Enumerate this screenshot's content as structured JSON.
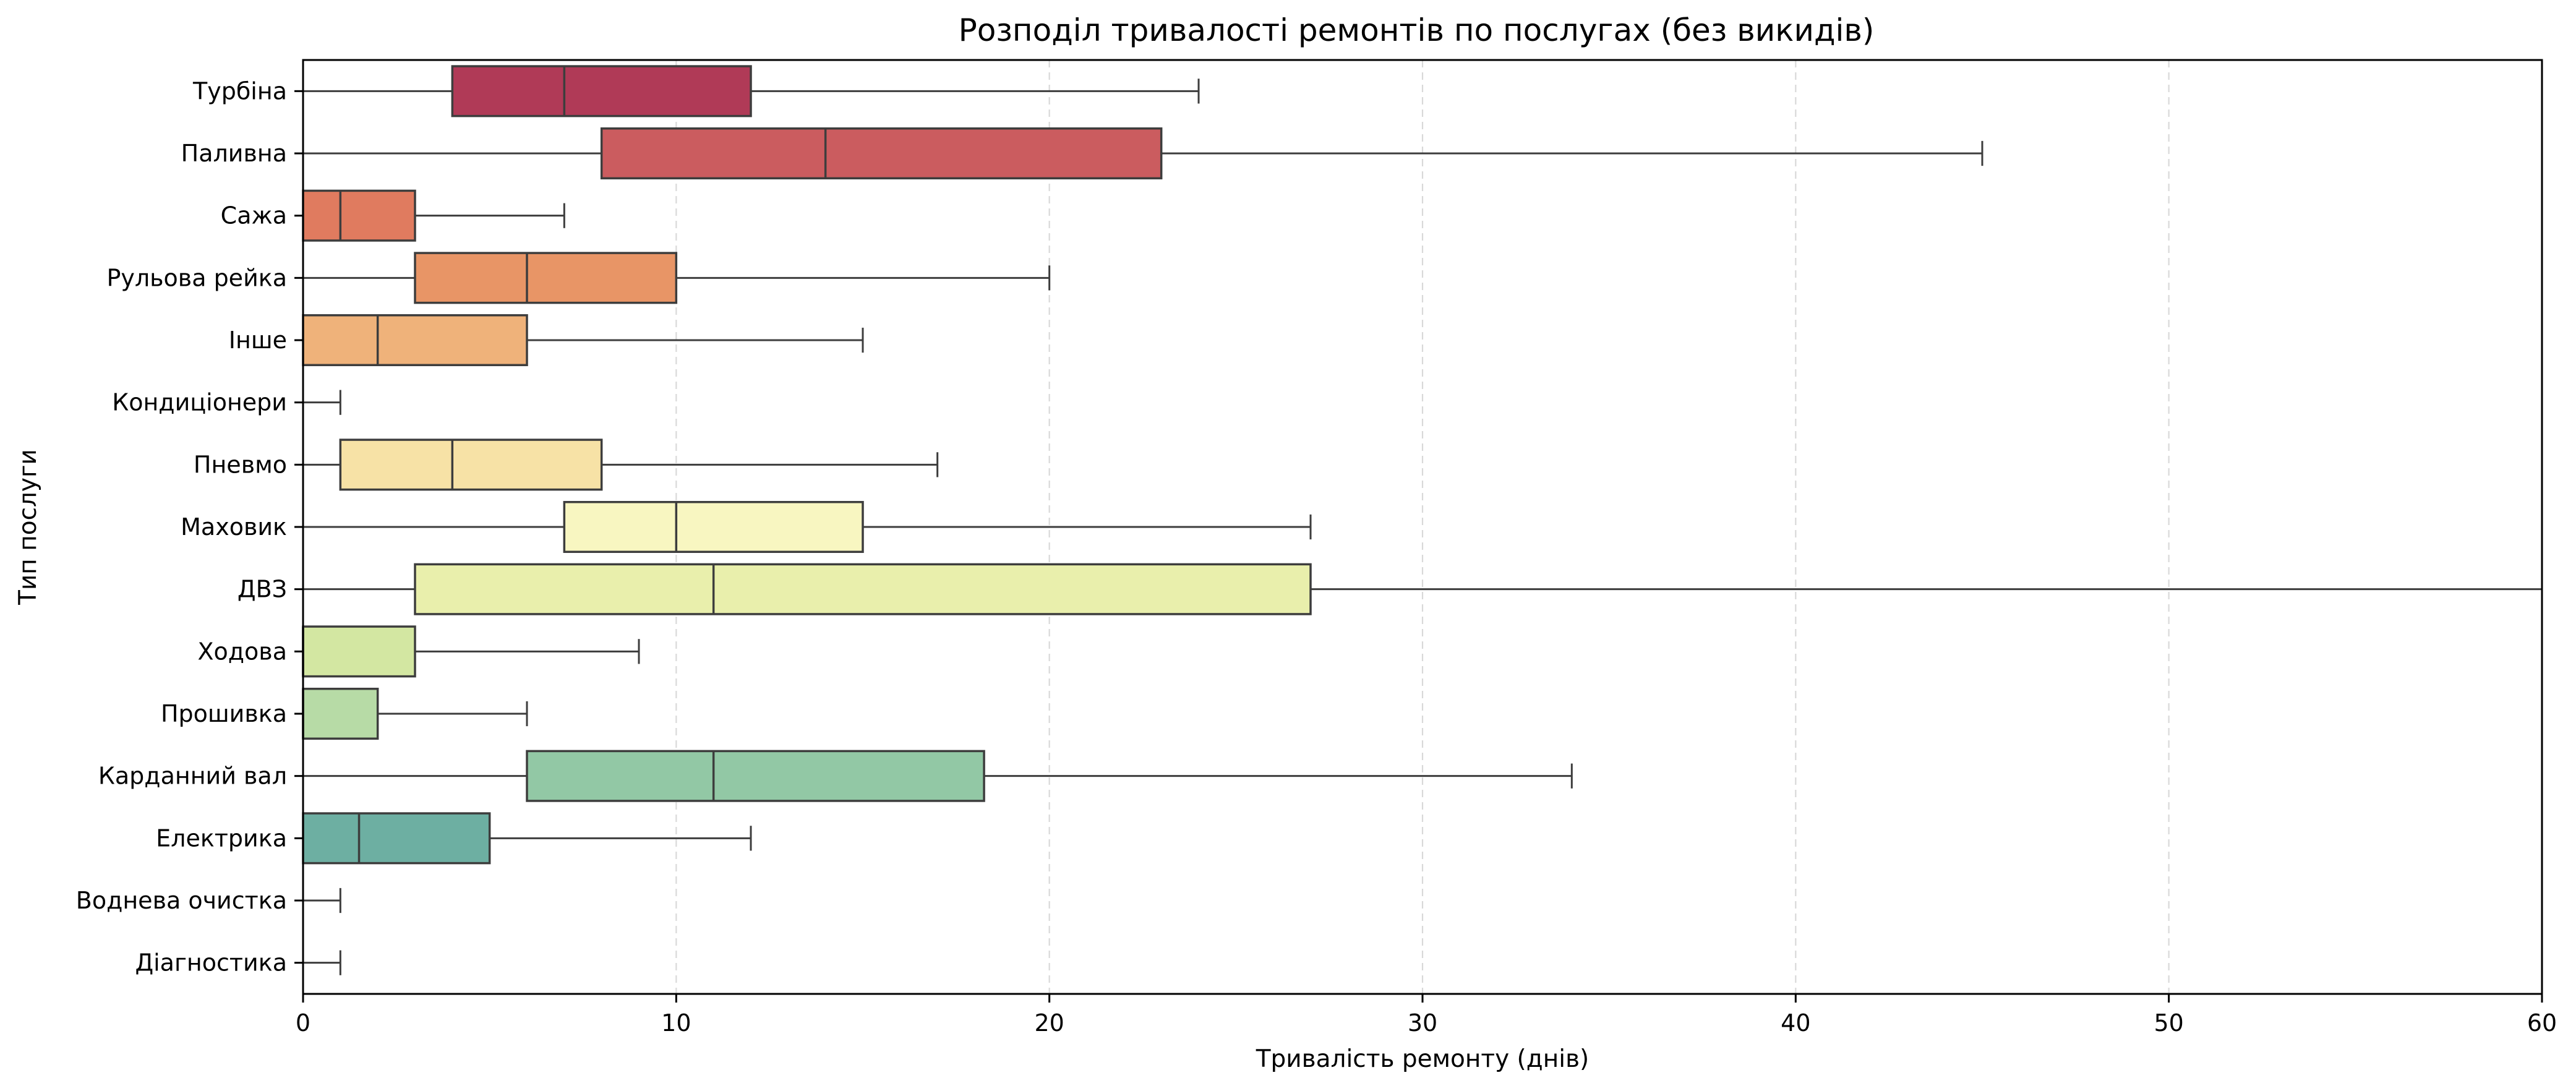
{
  "chart_data": {
    "type": "boxplot",
    "orientation": "horizontal",
    "title": "Розподіл тривалості ремонтів по послугах (без викидів)",
    "xlabel": "Тривалість ремонту (днів)",
    "ylabel": "Тип послуги",
    "xlim": [
      0,
      60
    ],
    "xticks": [
      0,
      10,
      20,
      30,
      40,
      50,
      60
    ],
    "grid": "x-dashed",
    "legend": "none",
    "categories": [
      {
        "name": "Турбіна",
        "min": 0,
        "q1": 4,
        "median": 7,
        "q3": 12,
        "max": 24,
        "color": "#b03a57"
      },
      {
        "name": "Паливна",
        "min": 0,
        "q1": 8,
        "median": 14,
        "q3": 23,
        "max": 45,
        "color": "#cb5c5f"
      },
      {
        "name": "Сажа",
        "min": 0,
        "q1": 0,
        "median": 1,
        "q3": 3,
        "max": 7,
        "color": "#e07b5f"
      },
      {
        "name": "Рульова рейка",
        "min": 0,
        "q1": 3,
        "median": 6,
        "q3": 10,
        "max": 20,
        "color": "#e89566"
      },
      {
        "name": "Інше",
        "min": 0,
        "q1": 0,
        "median": 2,
        "q3": 6,
        "max": 15,
        "color": "#efb27a"
      },
      {
        "name": "Кондиціонери",
        "min": 0,
        "q1": 0,
        "median": 0,
        "q3": 0,
        "max": 1,
        "color": "#f4cf8e"
      },
      {
        "name": "Пневмо",
        "min": 0,
        "q1": 1,
        "median": 4,
        "q3": 8,
        "max": 17,
        "color": "#f7e2a6"
      },
      {
        "name": "Маховик",
        "min": 0,
        "q1": 7,
        "median": 10,
        "q3": 15,
        "max": 27,
        "color": "#f8f6c1"
      },
      {
        "name": "ДВЗ",
        "min": 0,
        "q1": 3,
        "median": 11,
        "q3": 27,
        "max": 60,
        "color": "#e9efac"
      },
      {
        "name": "Ходова",
        "min": 0,
        "q1": 0,
        "median": 0,
        "q3": 3,
        "max": 9,
        "color": "#d3e7a2"
      },
      {
        "name": "Прошивка",
        "min": 0,
        "q1": 0,
        "median": 0,
        "q3": 2,
        "max": 6,
        "color": "#b7dba6"
      },
      {
        "name": "Карданний вал",
        "min": 0,
        "q1": 6,
        "median": 11,
        "q3": 18.25,
        "max": 34,
        "color": "#92c8a5"
      },
      {
        "name": "Електрика",
        "min": 0,
        "q1": 0,
        "median": 1.5,
        "q3": 5,
        "max": 12,
        "color": "#6dafa2"
      },
      {
        "name": "Воднева очистка",
        "min": 0,
        "q1": 0,
        "median": 0,
        "q3": 0,
        "max": 1,
        "color": "#5a96a8"
      },
      {
        "name": "Діагностика",
        "min": 0,
        "q1": 0,
        "median": 0,
        "q3": 0,
        "max": 1,
        "color": "#5b7fb1"
      }
    ]
  }
}
